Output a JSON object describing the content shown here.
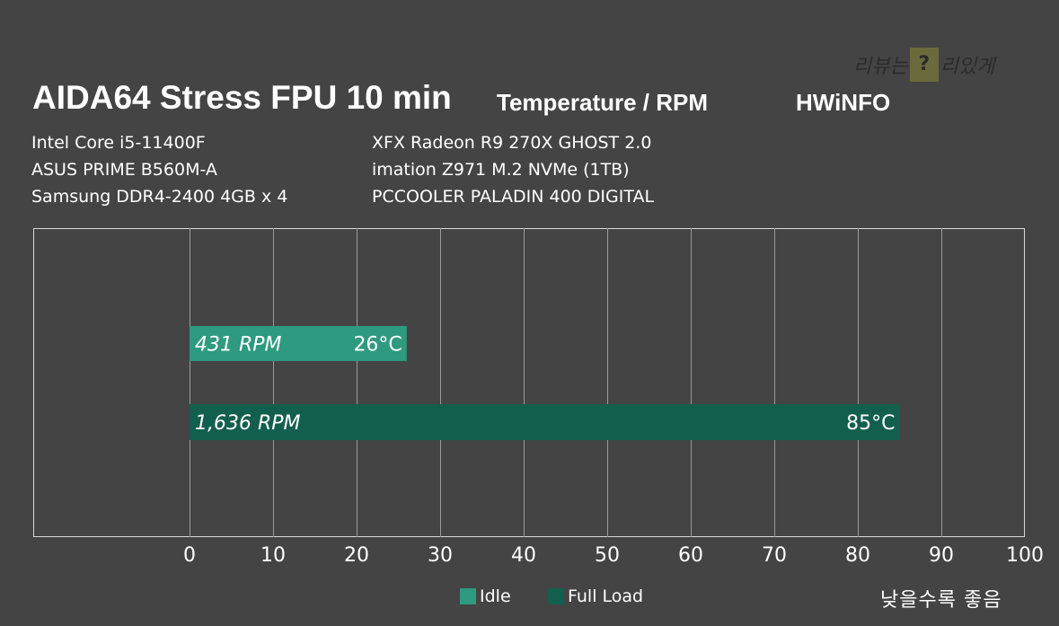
{
  "header": {
    "title": "AIDA64 Stress FPU 10 min",
    "subtitle": "Temperature / RPM",
    "source": "HWiNFO"
  },
  "watermark": {
    "text_left": "리뷰는",
    "text_right": "리있게",
    "box_glyph": "?"
  },
  "specs": {
    "left": [
      "Intel Core i5-11400F",
      "ASUS PRIME B560M-A",
      "Samsung DDR4-2400 4GB x 4"
    ],
    "right": [
      "XFX Radeon R9 270X GHOST 2.0",
      "imation Z971 M.2 NVMe (1TB)",
      "PCCOOLER PALADIN 400 DIGITAL"
    ]
  },
  "legend": {
    "idle_label": "Idle",
    "full_label": "Full Load"
  },
  "note": "낮을수록 좋음",
  "colors": {
    "background": "#444444",
    "idle": "#2e9a80",
    "full_load": "#135f4e",
    "grid": "#9a9a9a",
    "plot_border": "#d8d8d8"
  },
  "chart_data": {
    "type": "bar",
    "orientation": "horizontal",
    "x_ticks": [
      0,
      10,
      20,
      30,
      40,
      50,
      60,
      70,
      80,
      90,
      100
    ],
    "xlim": [
      0,
      100
    ],
    "grid": true,
    "series": [
      {
        "name": "Idle",
        "value": 26,
        "value_label": "26°C",
        "rpm_label": "431 RPM"
      },
      {
        "name": "Full Load",
        "value": 85,
        "value_label": "85°C",
        "rpm_label": "1,636 RPM"
      }
    ]
  }
}
